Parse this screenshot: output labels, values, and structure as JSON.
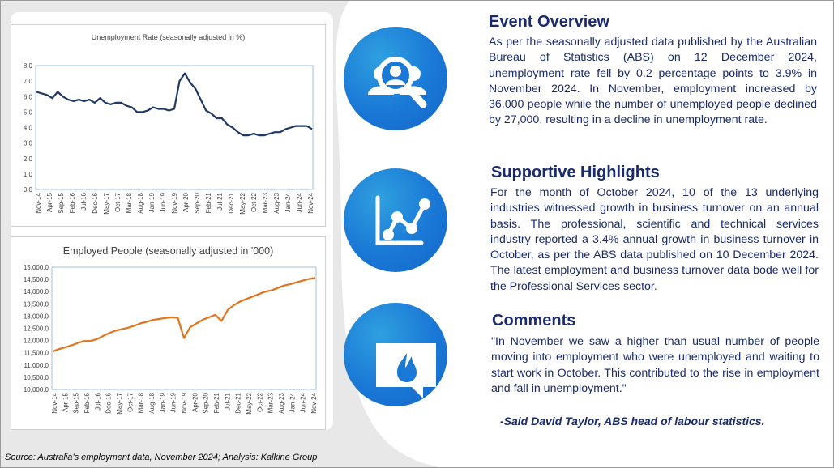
{
  "sections": [
    {
      "title": "Event Overview",
      "icon": "user-search-icon",
      "text": "As per the seasonally adjusted data published by the Australian Bureau of Statistics (ABS) on 12 December 2024, unemployment rate fell by 0.2 percentage points to 3.9% in November 2024. In November, employment increased by 36,000 people while the number of unemployed people declined by 27,000, resulting in a decline in unemployment rate."
    },
    {
      "title": "Supportive Highlights",
      "icon": "line-chart-icon",
      "text": "For the month of October 2024, 10 of the 13 underlying industries witnessed growth in business turnover on an annual basis. The professional, scientific and technical services industry reported a 3.4% annual growth in business turnover in October, as per the ABS data published on 10 December 2024. The latest employment and business turnover data bode well for the Professional Services sector."
    },
    {
      "title": "Comments",
      "icon": "chat-fire-icon",
      "text": "\"In November we saw a higher than usual number of people moving into employment who were unemployed and waiting to start work in October. This contributed to the rise in employment and fall in unemployment.\""
    }
  ],
  "quote_author": "-Said David Taylor, ABS head of labour statistics.",
  "source": "Source: Australia’s employment data, November 2024; Analysis: Kalkine Group",
  "colors": {
    "unemployment_line": "#1f3864",
    "employed_line": "#e0741f",
    "accent_blue": "#1a78d6",
    "heading": "#1a2b6d"
  },
  "chart_data": [
    {
      "type": "line",
      "title": "Unemployment Rate (seasonally adjusted in %)",
      "ylim": [
        0,
        8
      ],
      "yticks": [
        "0.0",
        "1.0",
        "2.0",
        "3.0",
        "4.0",
        "5.0",
        "6.0",
        "7.0",
        "8.0"
      ],
      "xticks": [
        "Nov-14",
        "Apr-15",
        "Sep-15",
        "Feb-16",
        "Jul-16",
        "Dec-16",
        "May-17",
        "Oct-17",
        "Mar-18",
        "Aug-18",
        "Jan-19",
        "Jun-19",
        "Nov-19",
        "Apr-20",
        "Sep-20",
        "Feb-21",
        "Jul-21",
        "Dec-21",
        "May-22",
        "Oct-22",
        "Mar-23",
        "Aug-23",
        "Jan-24",
        "Jun-24",
        "Nov-24"
      ],
      "series": [
        {
          "values": [
            6.3,
            6.2,
            6.1,
            5.9,
            6.3,
            6.0,
            5.8,
            5.7,
            5.8,
            5.7,
            5.8,
            5.6,
            5.9,
            5.6,
            5.5,
            5.6,
            5.6,
            5.4,
            5.3,
            5.0,
            5.0,
            5.1,
            5.3,
            5.2,
            5.2,
            5.1,
            5.2,
            7.0,
            7.5,
            6.9,
            6.5,
            5.8,
            5.1,
            4.9,
            4.6,
            4.6,
            4.2,
            4.0,
            3.7,
            3.5,
            3.5,
            3.6,
            3.5,
            3.5,
            3.6,
            3.7,
            3.7,
            3.9,
            4.0,
            4.1,
            4.1,
            4.1,
            3.9
          ]
        }
      ]
    },
    {
      "type": "line",
      "title": "Employed People (seasonally adjusted in '000)",
      "ylim": [
        10000,
        15000
      ],
      "yticks": [
        "10,000.0",
        "10,500.0",
        "11,000.0",
        "11,500.0",
        "12,000.0",
        "12,500.0",
        "13,000.0",
        "13,500.0",
        "14,000.0",
        "14,500.0",
        "15,000.0"
      ],
      "xticks": [
        "Nov-14",
        "Apr-15",
        "Sep-15",
        "Feb-16",
        "Jul-16",
        "Dec-16",
        "May-17",
        "Oct-17",
        "Mar-18",
        "Aug-18",
        "Jan-19",
        "Jun-19",
        "Nov-19",
        "Apr-20",
        "Sep-20",
        "Feb-21",
        "Jul-21",
        "Dec-21",
        "May-22",
        "Oct-22",
        "Mar-23",
        "Aug-23",
        "Jan-24",
        "Jun-24",
        "Nov-24"
      ],
      "series": [
        {
          "values": [
            11550,
            11650,
            11720,
            11800,
            11900,
            11980,
            11980,
            12050,
            12180,
            12300,
            12400,
            12460,
            12520,
            12600,
            12700,
            12760,
            12840,
            12880,
            12920,
            12950,
            12930,
            12100,
            12550,
            12700,
            12850,
            12950,
            13050,
            12800,
            13250,
            13450,
            13600,
            13700,
            13800,
            13900,
            14000,
            14050,
            14150,
            14250,
            14300,
            14380,
            14450,
            14520,
            14560
          ]
        }
      ]
    }
  ]
}
